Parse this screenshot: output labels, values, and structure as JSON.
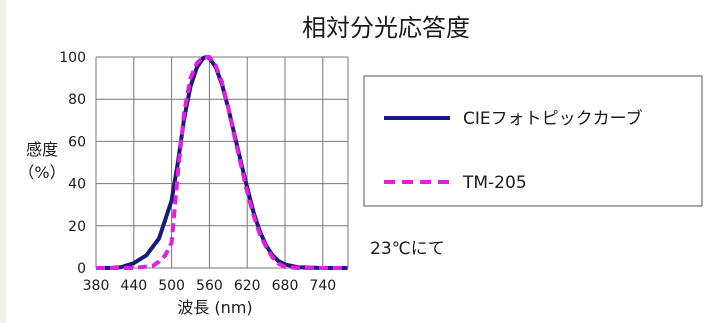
{
  "chart_data": {
    "type": "line",
    "title": "相対分光応答度",
    "xlabel": "波長 (nm)",
    "ylabel": "感度",
    "ylabel_unit": "（%）",
    "xlim": [
      380,
      780
    ],
    "ylim": [
      0,
      100
    ],
    "x_ticks": [
      380,
      440,
      500,
      560,
      620,
      680,
      740
    ],
    "y_ticks": [
      0,
      20,
      40,
      60,
      80,
      100
    ],
    "grid": true,
    "legend_position": "right",
    "colors": {
      "cie": "#1a1a7a",
      "tm205": "#e020e0"
    },
    "series": [
      {
        "name": "CIEフォトピックカーブ",
        "style": "solid",
        "x": [
          380,
          400,
          420,
          440,
          460,
          480,
          500,
          510,
          520,
          530,
          540,
          550,
          555,
          560,
          570,
          580,
          590,
          600,
          610,
          620,
          630,
          640,
          650,
          660,
          670,
          680,
          700,
          740,
          780
        ],
        "y": [
          0,
          0,
          0.4,
          2.3,
          6,
          14,
          32,
          50,
          71,
          86,
          95,
          99.5,
          100,
          99.5,
          95.2,
          87,
          75.7,
          63,
          50.3,
          38.1,
          26.5,
          17.5,
          10.7,
          6.1,
          3.2,
          1.7,
          0.4,
          0,
          0
        ]
      },
      {
        "name": "TM-205",
        "style": "dashed",
        "x": [
          380,
          440,
          470,
          480,
          490,
          500,
          510,
          520,
          530,
          540,
          550,
          560,
          570,
          580,
          590,
          600,
          610,
          620,
          630,
          640,
          650,
          660,
          670,
          680,
          700,
          780
        ],
        "y": [
          0,
          0,
          1,
          3,
          6,
          12,
          45,
          74,
          90,
          97,
          100,
          100,
          96,
          88,
          76,
          62,
          49,
          36,
          25,
          16,
          10,
          5,
          2,
          0.5,
          0,
          0
        ]
      }
    ]
  },
  "annotation": "23℃にて"
}
